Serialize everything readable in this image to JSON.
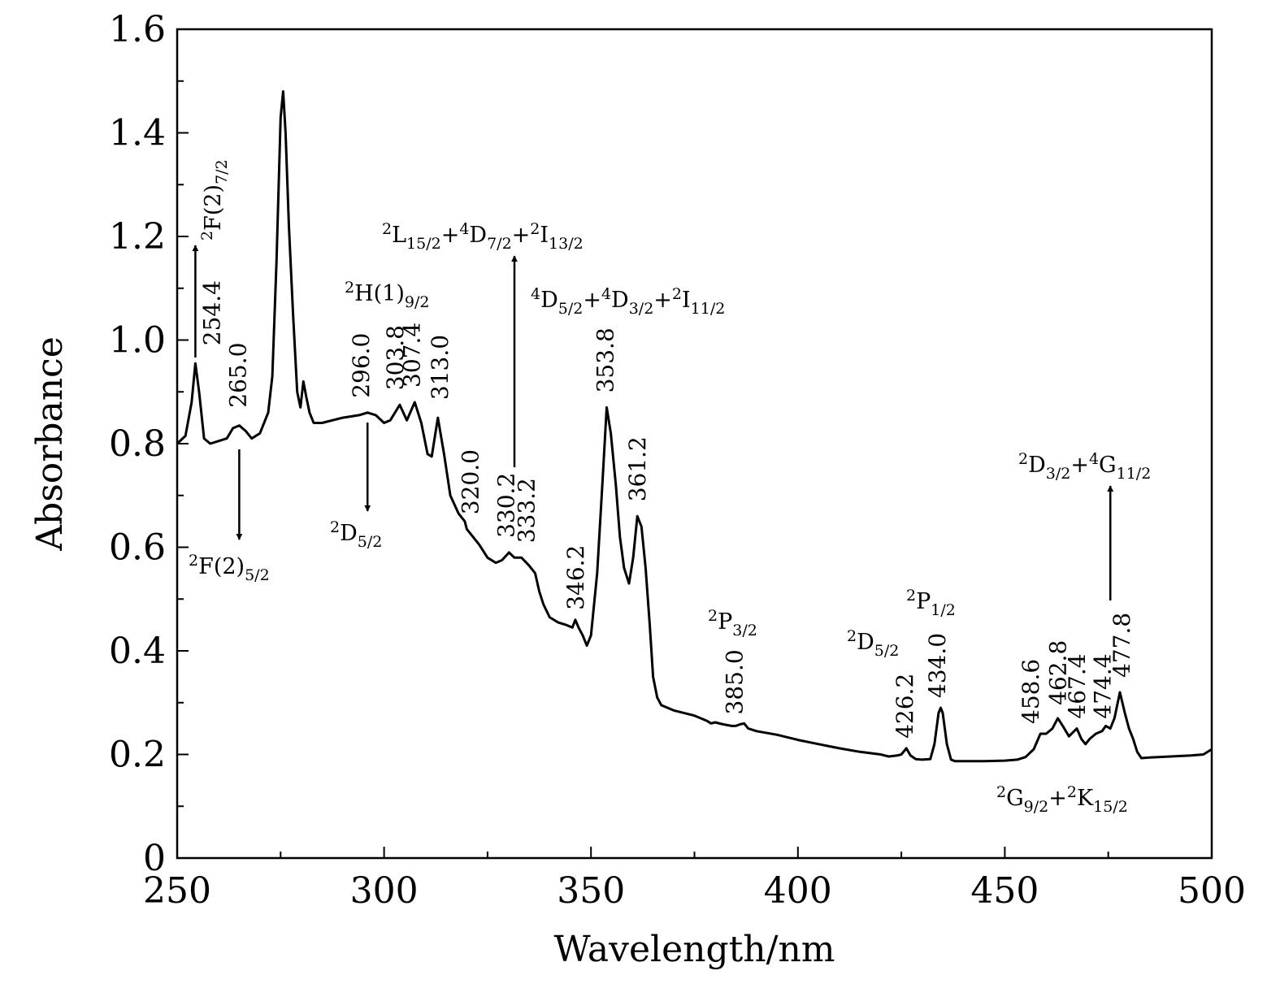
{
  "chart_data": {
    "type": "line",
    "title": "",
    "xlabel": "Wavelength/nm",
    "ylabel": "Absorbance",
    "xlim": [
      250,
      500
    ],
    "ylim": [
      0,
      1.6
    ],
    "x_ticks": [
      "250",
      "300",
      "350",
      "400",
      "450",
      "500"
    ],
    "y_ticks": [
      "0",
      "0.2",
      "0.4",
      "0.6",
      "0.8",
      "1.0",
      "1.2",
      "1.4",
      "1.6"
    ],
    "series": [
      {
        "name": "Absorbance",
        "x": [
          250,
          252,
          253.5,
          254.4,
          255.3,
          256.5,
          258,
          260,
          262,
          263.5,
          265,
          266.5,
          268,
          270,
          272,
          273,
          274,
          275,
          275.6,
          276.2,
          277,
          278,
          279,
          279.8,
          280.5,
          281.2,
          282,
          283,
          285,
          290,
          294,
          296,
          298,
          300,
          301.5,
          303.8,
          305.5,
          307.4,
          309,
          310.5,
          311.5,
          313,
          314.5,
          316,
          318,
          319.5,
          320,
          321,
          323,
          325,
          327,
          328.5,
          330.2,
          331.5,
          333.2,
          335,
          336.5,
          337.5,
          338.5,
          340,
          342,
          344,
          345.5,
          346.2,
          347,
          348,
          349,
          350,
          351.5,
          352.8,
          353.8,
          354.8,
          356,
          357,
          358,
          359.2,
          360.2,
          361.2,
          362.2,
          363.2,
          364.2,
          365,
          366,
          367,
          370,
          375,
          378,
          379,
          380,
          382,
          384,
          385,
          386,
          387,
          388,
          390,
          395,
          400,
          405,
          410,
          415,
          420,
          421,
          422,
          423,
          424,
          425,
          426.2,
          427.2,
          428.5,
          430,
          432,
          433,
          434,
          434.5,
          435,
          436,
          437,
          438,
          440,
          445,
          450,
          453,
          455,
          457,
          458.6,
          460,
          461.5,
          462.8,
          464,
          465.5,
          467.4,
          468.5,
          469.5,
          470.5,
          472,
          473.5,
          474.4,
          475.5,
          476.5,
          477.8,
          479,
          480,
          481,
          482,
          483,
          485,
          490,
          495,
          498,
          500
        ],
        "values": [
          0.8,
          0.815,
          0.88,
          0.955,
          0.9,
          0.81,
          0.8,
          0.805,
          0.81,
          0.83,
          0.835,
          0.825,
          0.81,
          0.82,
          0.86,
          0.93,
          1.15,
          1.43,
          1.48,
          1.4,
          1.22,
          1.05,
          0.9,
          0.87,
          0.92,
          0.89,
          0.86,
          0.84,
          0.84,
          0.85,
          0.855,
          0.86,
          0.855,
          0.84,
          0.845,
          0.875,
          0.845,
          0.88,
          0.84,
          0.78,
          0.775,
          0.85,
          0.78,
          0.7,
          0.665,
          0.65,
          0.635,
          0.625,
          0.605,
          0.58,
          0.57,
          0.575,
          0.59,
          0.58,
          0.58,
          0.565,
          0.55,
          0.515,
          0.49,
          0.465,
          0.455,
          0.45,
          0.445,
          0.46,
          0.445,
          0.43,
          0.41,
          0.43,
          0.55,
          0.73,
          0.87,
          0.82,
          0.72,
          0.62,
          0.56,
          0.53,
          0.58,
          0.66,
          0.64,
          0.56,
          0.45,
          0.35,
          0.31,
          0.295,
          0.285,
          0.275,
          0.265,
          0.26,
          0.262,
          0.258,
          0.255,
          0.255,
          0.258,
          0.26,
          0.25,
          0.245,
          0.238,
          0.228,
          0.22,
          0.212,
          0.205,
          0.2,
          0.198,
          0.196,
          0.197,
          0.198,
          0.2,
          0.212,
          0.198,
          0.191,
          0.19,
          0.191,
          0.22,
          0.28,
          0.29,
          0.28,
          0.22,
          0.19,
          0.187,
          0.187,
          0.187,
          0.188,
          0.19,
          0.195,
          0.21,
          0.24,
          0.24,
          0.25,
          0.27,
          0.255,
          0.235,
          0.25,
          0.23,
          0.22,
          0.23,
          0.24,
          0.245,
          0.255,
          0.25,
          0.27,
          0.32,
          0.28,
          0.25,
          0.23,
          0.205,
          0.193,
          0.194,
          0.196,
          0.198,
          0.2,
          0.21
        ]
      }
    ],
    "peak_labels": [
      {
        "text": "254.4",
        "x": 254.4,
        "y": 0.955
      },
      {
        "text": "265.0",
        "x": 265.0,
        "y": 0.835
      },
      {
        "text": "296.0",
        "x": 296.0,
        "y": 0.86
      },
      {
        "text": "303.8",
        "x": 303.8,
        "y": 0.875
      },
      {
        "text": "307.4",
        "x": 307.4,
        "y": 0.88
      },
      {
        "text": "313.0",
        "x": 313.0,
        "y": 0.85
      },
      {
        "text": "320.0",
        "x": 320.0,
        "y": 0.635
      },
      {
        "text": "330.2",
        "x": 330.2,
        "y": 0.59
      },
      {
        "text": "333.2",
        "x": 333.2,
        "y": 0.58
      },
      {
        "text": "346.2",
        "x": 346.2,
        "y": 0.46
      },
      {
        "text": "353.8",
        "x": 353.8,
        "y": 0.87
      },
      {
        "text": "361.2",
        "x": 361.2,
        "y": 0.66
      },
      {
        "text": "385.0",
        "x": 385.0,
        "y": 0.258
      },
      {
        "text": "426.2",
        "x": 426.2,
        "y": 0.212
      },
      {
        "text": "434.0",
        "x": 434.0,
        "y": 0.29
      },
      {
        "text": "458.6",
        "x": 458.6,
        "y": 0.24
      },
      {
        "text": "462.8",
        "x": 462.8,
        "y": 0.27
      },
      {
        "text": "467.4",
        "x": 467.4,
        "y": 0.25
      },
      {
        "text": "474.4",
        "x": 474.4,
        "y": 0.25
      },
      {
        "text": "477.8",
        "x": 477.8,
        "y": 0.32
      }
    ],
    "transition_labels": [
      {
        "id": "F7",
        "parts": [
          [
            "sup",
            "2"
          ],
          [
            "base",
            "F(2)"
          ],
          [
            "sub",
            "7/2"
          ]
        ]
      },
      {
        "id": "F5",
        "parts": [
          [
            "sup",
            "2"
          ],
          [
            "base",
            "F(2)"
          ],
          [
            "sub",
            "5/2"
          ]
        ]
      },
      {
        "id": "H9",
        "parts": [
          [
            "sup",
            "2"
          ],
          [
            "base",
            "H(1)"
          ],
          [
            "sub",
            "9/2"
          ]
        ]
      },
      {
        "id": "D5a",
        "parts": [
          [
            "sup",
            "2"
          ],
          [
            "base",
            "D"
          ],
          [
            "sub",
            "5/2"
          ]
        ]
      },
      {
        "id": "L15",
        "parts": [
          [
            "sup",
            "2"
          ],
          [
            "base",
            "L"
          ],
          [
            "sub",
            "15/2"
          ],
          [
            "base",
            "+"
          ],
          [
            "sup",
            "4"
          ],
          [
            "base",
            "D"
          ],
          [
            "sub",
            "7/2"
          ],
          [
            "base",
            "+"
          ],
          [
            "sup",
            "2"
          ],
          [
            "base",
            "I"
          ],
          [
            "sub",
            "13/2"
          ]
        ]
      },
      {
        "id": "D5b",
        "parts": [
          [
            "sup",
            "4"
          ],
          [
            "base",
            "D"
          ],
          [
            "sub",
            "5/2"
          ],
          [
            "base",
            "+"
          ],
          [
            "sup",
            "4"
          ],
          [
            "base",
            "D"
          ],
          [
            "sub",
            "3/2"
          ],
          [
            "base",
            "+"
          ],
          [
            "sup",
            "2"
          ],
          [
            "base",
            "I"
          ],
          [
            "sub",
            "11/2"
          ]
        ]
      },
      {
        "id": "P3",
        "parts": [
          [
            "sup",
            "2"
          ],
          [
            "base",
            "P"
          ],
          [
            "sub",
            "3/2"
          ]
        ]
      },
      {
        "id": "D5c",
        "parts": [
          [
            "sup",
            "2"
          ],
          [
            "base",
            "D"
          ],
          [
            "sub",
            "5/2"
          ]
        ]
      },
      {
        "id": "P1",
        "parts": [
          [
            "sup",
            "2"
          ],
          [
            "base",
            "P"
          ],
          [
            "sub",
            "1/2"
          ]
        ]
      },
      {
        "id": "D3",
        "parts": [
          [
            "sup",
            "2"
          ],
          [
            "base",
            "D"
          ],
          [
            "sub",
            "3/2"
          ],
          [
            "base",
            "+"
          ],
          [
            "sup",
            "4"
          ],
          [
            "base",
            "G"
          ],
          [
            "sub",
            "11/2"
          ]
        ]
      },
      {
        "id": "G9",
        "parts": [
          [
            "sup",
            "2"
          ],
          [
            "base",
            "G"
          ],
          [
            "sub",
            "9/2"
          ],
          [
            "base",
            "+"
          ],
          [
            "sup",
            "2"
          ],
          [
            "base",
            "K"
          ],
          [
            "sub",
            "15/2"
          ]
        ]
      }
    ],
    "grid": false,
    "legend": "none"
  }
}
